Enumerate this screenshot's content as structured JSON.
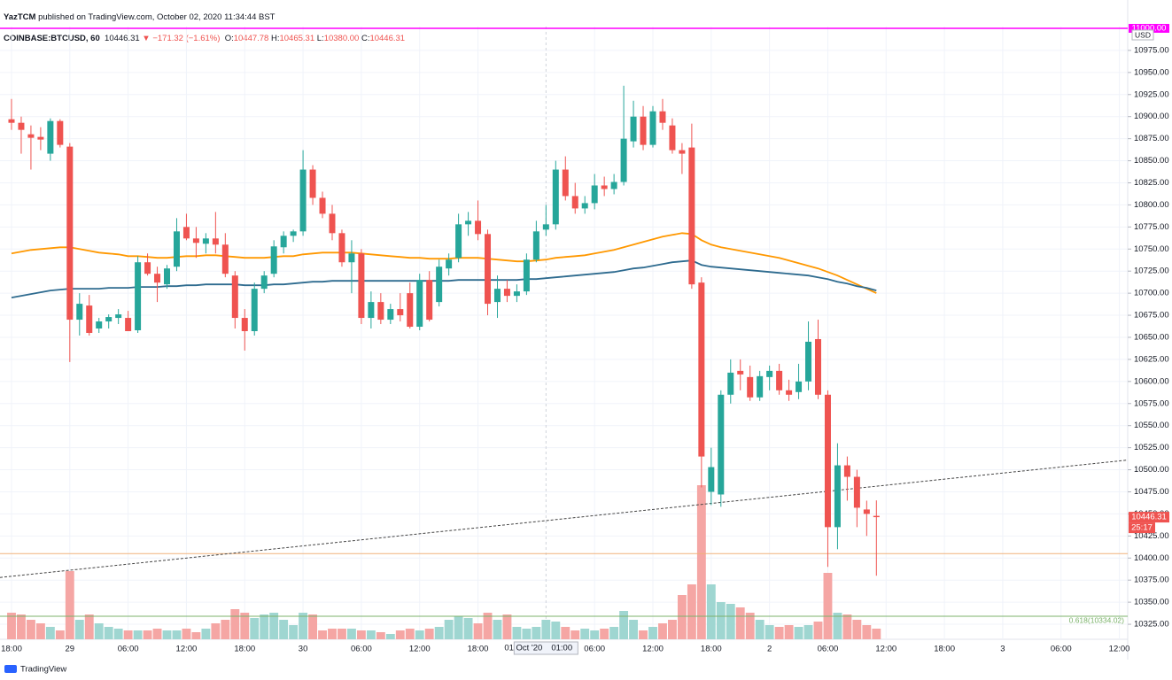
{
  "header": {
    "publisher": "YazTCM",
    "published_text": "published on TradingView.com, October 02, 2020 11:34:44 BST",
    "symbol": "COINBASE:BTCUSD, 60",
    "last": "10446.31",
    "change": "▼ −171.32 (−1.61%)",
    "o_key": "O:",
    "o_val": "10447.78",
    "h_key": "H:",
    "h_val": "10465.31",
    "l_key": "L:",
    "l_val": "10380.00",
    "c_key": "C:",
    "c_val": "10446.31"
  },
  "footer": {
    "brand": "TradingView"
  },
  "chart_data": {
    "type": "candlestick",
    "currency": "USD",
    "up_color": "#26a69a",
    "down_color": "#ef5350",
    "volume_up_color": "#9fd6d1",
    "volume_down_color": "#f5a6a4",
    "grid": true,
    "categories": [
      "18:00",
      null,
      null,
      null,
      null,
      null,
      "29",
      null,
      null,
      null,
      null,
      null,
      "06:00",
      null,
      null,
      null,
      null,
      null,
      "12:00",
      null,
      null,
      null,
      null,
      null,
      "18:00",
      null,
      null,
      null,
      null,
      null,
      "30",
      null,
      null,
      null,
      null,
      null,
      "06:00",
      null,
      null,
      null,
      null,
      null,
      "12:00",
      null,
      null,
      null,
      null,
      null,
      "18:00",
      null,
      null,
      null,
      null,
      null,
      null,
      null,
      null,
      null,
      null,
      null,
      "06:00",
      null,
      null,
      null,
      null,
      null,
      "12:00",
      null,
      null,
      null,
      null,
      null,
      "18:00",
      null,
      null,
      null,
      null,
      null,
      "2",
      null,
      null,
      null,
      null,
      null,
      "06:00",
      null,
      null,
      null,
      null,
      null,
      "12:00",
      null,
      null,
      null,
      null,
      null,
      "18:00",
      null,
      null,
      null,
      null,
      null,
      "3",
      null,
      null,
      null,
      null,
      null,
      "06:00",
      null,
      null,
      null,
      null,
      null,
      "12:00"
    ],
    "open": [
      10897,
      10893,
      10880,
      10877,
      10858,
      10895,
      10866,
      10670,
      10686,
      10660,
      10668,
      10672,
      10672,
      10658,
      10735,
      10722,
      10710,
      10730,
      10775,
      10762,
      10756,
      10762,
      10755,
      10720,
      10672,
      10657,
      10705,
      10722,
      10752,
      10765,
      10770,
      10840,
      10808,
      10790,
      10768,
      10735,
      10745,
      10672,
      10690,
      10670,
      10682,
      10700,
      10662,
      10715,
      10690,
      10728,
      10740,
      10778,
      10782,
      10767,
      10690,
      10705,
      10697,
      10702,
      10738,
      10772,
      10778,
      10840,
      10810,
      10796,
      10802,
      10822,
      10818,
      10826,
      10872,
      10900,
      10868,
      10906,
      10890,
      10862,
      10865,
      10712,
      10475,
      10472,
      10585,
      10612,
      10605,
      10582,
      10605,
      10612,
      10590,
      10588,
      10600,
      10648,
      10585,
      10435,
      10505,
      10492,
      10455,
      10447.78,
      null,
      null,
      null,
      null,
      null,
      null,
      null,
      null,
      null,
      null,
      null,
      null,
      null,
      null,
      null,
      null,
      null,
      null,
      null,
      null,
      null,
      null,
      null,
      null,
      null
    ],
    "high": [
      10920,
      10900,
      10890,
      10888,
      10898,
      10897,
      10870,
      10700,
      10698,
      10672,
      10676,
      10682,
      10680,
      10742,
      10745,
      10730,
      10732,
      10785,
      10790,
      10775,
      10768,
      10792,
      10768,
      10725,
      10682,
      10712,
      10725,
      10760,
      10770,
      10772,
      10862,
      10845,
      10815,
      10800,
      10772,
      10760,
      10750,
      10702,
      10700,
      10688,
      10700,
      10712,
      10722,
      10725,
      10738,
      10745,
      10790,
      10792,
      10805,
      10772,
      10720,
      10715,
      10710,
      10745,
      10782,
      10800,
      10850,
      10855,
      10825,
      10810,
      10835,
      10832,
      10835,
      10935,
      10918,
      10912,
      10912,
      10920,
      10898,
      10870,
      10892,
      10718,
      10525,
      10590,
      10625,
      10625,
      10618,
      10612,
      10618,
      10620,
      10602,
      10620,
      10668,
      10670,
      10590,
      10530,
      10515,
      10500,
      10465,
      10465.31,
      null,
      null,
      null,
      null,
      null,
      null,
      null,
      null,
      null,
      null,
      null,
      null,
      null,
      null,
      null,
      null,
      null,
      null,
      null,
      null,
      null,
      null,
      null,
      null,
      null
    ],
    "low": [
      10885,
      10858,
      10840,
      10862,
      10850,
      10865,
      10622,
      10652,
      10652,
      10655,
      10660,
      10665,
      10660,
      10655,
      10720,
      10690,
      10705,
      10725,
      10760,
      10740,
      10745,
      10745,
      10718,
      10660,
      10635,
      10652,
      10700,
      10718,
      10745,
      10758,
      10765,
      10800,
      10785,
      10760,
      10730,
      10700,
      10665,
      10660,
      10665,
      10665,
      10668,
      10660,
      10658,
      10668,
      10685,
      10720,
      10735,
      10765,
      10760,
      10675,
      10672,
      10690,
      10690,
      10698,
      10735,
      10765,
      10772,
      10805,
      10790,
      10790,
      10795,
      10810,
      10812,
      10822,
      10865,
      10862,
      10865,
      10885,
      10858,
      10835,
      10705,
      10480,
      10460,
      10458,
      10575,
      10590,
      10578,
      10578,
      10590,
      10585,
      10578,
      10580,
      10590,
      10580,
      10390,
      10410,
      10465,
      10435,
      10425,
      10380,
      null,
      null,
      null,
      null,
      null,
      null,
      null,
      null,
      null,
      null,
      null,
      null,
      null,
      null,
      null,
      null,
      null,
      null,
      null,
      null,
      null,
      null,
      null,
      null,
      null
    ],
    "close": [
      10893,
      10885,
      10876,
      10874,
      10895,
      10868,
      10670,
      10688,
      10655,
      10668,
      10673,
      10676,
      10657,
      10735,
      10722,
      10712,
      10728,
      10770,
      10762,
      10757,
      10762,
      10755,
      10722,
      10672,
      10657,
      10705,
      10720,
      10753,
      10765,
      10770,
      10840,
      10808,
      10790,
      10768,
      10735,
      10745,
      10672,
      10690,
      10670,
      10682,
      10675,
      10662,
      10715,
      10670,
      10730,
      10738,
      10778,
      10782,
      10767,
      10688,
      10705,
      10697,
      10702,
      10738,
      10770,
      10778,
      10840,
      10810,
      10796,
      10802,
      10822,
      10818,
      10826,
      10875,
      10900,
      10868,
      10906,
      10893,
      10862,
      10858,
      10710,
      10515,
      10503,
      10585,
      10610,
      10608,
      10582,
      10606,
      10612,
      10590,
      10585,
      10600,
      10645,
      10585,
      10435,
      10505,
      10492,
      10457,
      10450,
      10446.31,
      null,
      null,
      null,
      null,
      null,
      null,
      null,
      null,
      null,
      null,
      null,
      null,
      null,
      null,
      null,
      null,
      null,
      null,
      null,
      null,
      null,
      null,
      null,
      null,
      null
    ],
    "volume": [
      30,
      28,
      22,
      18,
      14,
      10,
      77,
      22,
      28,
      18,
      14,
      12,
      10,
      10,
      10,
      12,
      10,
      10,
      12,
      8,
      12,
      18,
      22,
      34,
      30,
      24,
      28,
      30,
      22,
      16,
      30,
      28,
      10,
      12,
      12,
      12,
      10,
      10,
      8,
      6,
      10,
      12,
      10,
      12,
      14,
      22,
      26,
      24,
      18,
      30,
      22,
      28,
      14,
      12,
      14,
      22,
      20,
      14,
      10,
      12,
      10,
      12,
      14,
      32,
      22,
      10,
      14,
      18,
      22,
      50,
      62,
      174,
      62,
      42,
      40,
      36,
      30,
      22,
      16,
      14,
      16,
      14,
      16,
      20,
      75,
      30,
      28,
      22,
      16,
      12,
      null,
      null,
      null,
      null,
      null,
      null,
      null,
      null,
      null,
      null,
      null,
      null,
      null,
      null,
      null,
      null,
      null,
      null,
      null,
      null,
      null,
      null,
      null,
      null,
      null
    ],
    "moving_averages": [
      {
        "color": "#ff9800",
        "values": [
          10745,
          10747,
          10749,
          10750,
          10751,
          10752,
          10752,
          10750,
          10748,
          10746,
          10745,
          10744,
          10742,
          10742,
          10741,
          10740,
          10740,
          10741,
          10742,
          10742,
          10743,
          10743,
          10742,
          10741,
          10740,
          10740,
          10740,
          10741,
          10742,
          10742,
          10744,
          10745,
          10746,
          10746,
          10746,
          10746,
          10745,
          10744,
          10743,
          10742,
          10741,
          10740,
          10740,
          10739,
          10739,
          10739,
          10740,
          10740,
          10740,
          10739,
          10738,
          10737,
          10736,
          10736,
          10737,
          10738,
          10740,
          10741,
          10742,
          10743,
          10745,
          10747,
          10749,
          10752,
          10755,
          10758,
          10761,
          10764,
          10766,
          10768,
          10767,
          10760,
          10755,
          10752,
          10750,
          10748,
          10746,
          10744,
          10742,
          10740,
          10737,
          10734,
          10731,
          10728,
          10724,
          10720,
          10715,
          10710,
          10705,
          10700,
          null,
          null,
          null,
          null,
          null,
          null,
          null,
          null,
          null,
          null,
          null,
          null,
          null,
          null,
          null,
          null,
          null,
          null,
          null,
          null,
          null,
          null,
          null,
          null,
          null
        ]
      },
      {
        "color": "#2e6b8f",
        "values": [
          10695,
          10697,
          10699,
          10701,
          10703,
          10704,
          10705,
          10705,
          10705,
          10705,
          10706,
          10706,
          10706,
          10707,
          10707,
          10707,
          10708,
          10708,
          10709,
          10709,
          10710,
          10710,
          10710,
          10710,
          10709,
          10709,
          10709,
          10710,
          10710,
          10711,
          10712,
          10713,
          10713,
          10714,
          10714,
          10714,
          10714,
          10714,
          10714,
          10714,
          10714,
          10714,
          10714,
          10714,
          10714,
          10714,
          10715,
          10715,
          10715,
          10715,
          10715,
          10715,
          10715,
          10716,
          10716,
          10717,
          10718,
          10719,
          10720,
          10721,
          10722,
          10723,
          10724,
          10726,
          10728,
          10729,
          10731,
          10733,
          10735,
          10736,
          10737,
          10732,
          10730,
          10729,
          10728,
          10727,
          10726,
          10725,
          10724,
          10723,
          10722,
          10721,
          10720,
          10718,
          10716,
          10713,
          10711,
          10708,
          10706,
          10703,
          null,
          null,
          null,
          null,
          null,
          null,
          null,
          null,
          null,
          null,
          null,
          null,
          null,
          null,
          null,
          null,
          null,
          null,
          null,
          null,
          null,
          null,
          null,
          null,
          null
        ]
      }
    ],
    "trendline": {
      "values": [
        10378,
        10511
      ],
      "color": "#444444"
    },
    "hlines": [
      {
        "value": 10405,
        "color": "#f0b27a"
      },
      {
        "value": 10334.02,
        "color": "#7cb36b",
        "label": "0.618(10334.02)"
      },
      {
        "value": 11000,
        "color": "#ff00ff",
        "label": "11000.00"
      }
    ],
    "last_price": {
      "value": 10446.31,
      "label": "10446.31",
      "countdown": "25:17"
    },
    "crosshair": {
      "date": "01 Oct '20",
      "time": "01:00"
    },
    "ylim": [
      10308,
      11002
    ],
    "yticks": [
      {
        "value": 10325,
        "label": "10325.00"
      },
      {
        "value": 10350,
        "label": "10350.00"
      },
      {
        "value": 10375,
        "label": "10375.00"
      },
      {
        "value": 10400,
        "label": "10400.00"
      },
      {
        "value": 10425,
        "label": "10425.00"
      },
      {
        "value": 10450,
        "label": "10450.00"
      },
      {
        "value": 10475,
        "label": "10475.00"
      },
      {
        "value": 10500,
        "label": "10500.00"
      },
      {
        "value": 10525,
        "label": "10525.00"
      },
      {
        "value": 10550,
        "label": "10550.00"
      },
      {
        "value": 10575,
        "label": "10575.00"
      },
      {
        "value": 10600,
        "label": "10600.00"
      },
      {
        "value": 10625,
        "label": "10625.00"
      },
      {
        "value": 10650,
        "label": "10650.00"
      },
      {
        "value": 10675,
        "label": "10675.00"
      },
      {
        "value": 10700,
        "label": "10700.00"
      },
      {
        "value": 10725,
        "label": "10725.00"
      },
      {
        "value": 10750,
        "label": "10750.00"
      },
      {
        "value": 10775,
        "label": "10775.00"
      },
      {
        "value": 10800,
        "label": "10800.00"
      },
      {
        "value": 10825,
        "label": "10825.00"
      },
      {
        "value": 10850,
        "label": "10850.00"
      },
      {
        "value": 10875,
        "label": "10875.00"
      },
      {
        "value": 10900,
        "label": "10900.00"
      },
      {
        "value": 10925,
        "label": "10925.00"
      },
      {
        "value": 10950,
        "label": "10950.00"
      },
      {
        "value": 10975,
        "label": "10975.00"
      }
    ]
  }
}
